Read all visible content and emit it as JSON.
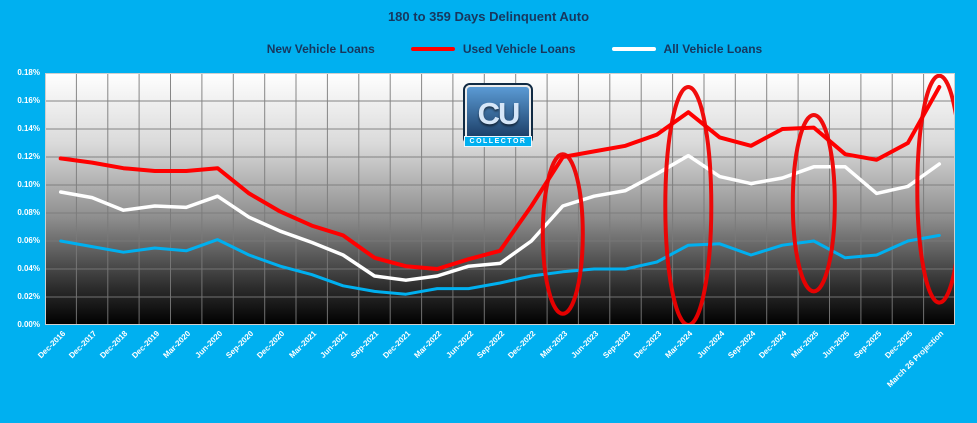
{
  "title": "180 to 359 Days Delinquent Auto",
  "logo": {
    "initials": "CU",
    "banner": "COLLECTOR"
  },
  "colors": {
    "background": "#00B0F0",
    "title_text": "#17375E",
    "grid": "#7A7A7A",
    "axis_text": "#FFFFFF",
    "annotation": "#F00000",
    "plot_border": "#CFCFCF"
  },
  "legend": [
    {
      "label": "New Vehicle Loans",
      "color": "#00B0F0"
    },
    {
      "label": "Used Vehicle Loans",
      "color": "#FF0000"
    },
    {
      "label": "All Vehicle Loans",
      "color": "#FFFFFF"
    }
  ],
  "chart_data": {
    "type": "line",
    "title": "180 to 359 Days Delinquent Auto",
    "xlabel": "",
    "ylabel": "",
    "ylim": [
      0,
      0.18
    ],
    "grid": true,
    "legend_position": "top",
    "y_ticks": [
      "0.00%",
      "0.02%",
      "0.04%",
      "0.06%",
      "0.08%",
      "0.10%",
      "0.12%",
      "0.14%",
      "0.16%",
      "0.18%"
    ],
    "categories": [
      "Dec-2016",
      "Dec-2017",
      "Dec-2018",
      "Dec-2019",
      "Mar-2020",
      "Jun-2020",
      "Sep-2020",
      "Dec-2020",
      "Mar-2021",
      "Jun-2021",
      "Sep-2021",
      "Dec-2021",
      "Mar-2022",
      "Jun-2022",
      "Sep-2022",
      "Dec-2022",
      "Mar-2023",
      "Jun-2023",
      "Sep-2023",
      "Dec-2023",
      "Mar-2024",
      "Jun-2024",
      "Sep-2024",
      "Dec-2024",
      "Mar-2025",
      "Jun-2025",
      "Sep-2025",
      "Dec-2025",
      "March 26 Projection"
    ],
    "series": [
      {
        "id": "new",
        "name": "New Vehicle Loans",
        "color": "#00B0F0",
        "values": [
          0.06,
          0.056,
          0.052,
          0.055,
          0.053,
          0.061,
          0.05,
          0.042,
          0.036,
          0.028,
          0.024,
          0.022,
          0.026,
          0.026,
          0.03,
          0.035,
          0.038,
          0.04,
          0.04,
          0.045,
          0.057,
          0.058,
          0.05,
          0.057,
          0.06,
          0.048,
          0.05,
          0.06,
          0.064
        ]
      },
      {
        "id": "all",
        "name": "All Vehicle Loans",
        "color": "#FFFFFF",
        "values": [
          0.095,
          0.091,
          0.082,
          0.085,
          0.084,
          0.092,
          0.077,
          0.067,
          0.059,
          0.05,
          0.035,
          0.032,
          0.035,
          0.042,
          0.044,
          0.06,
          0.085,
          0.092,
          0.096,
          0.108,
          0.121,
          0.106,
          0.101,
          0.105,
          0.113,
          0.113,
          0.094,
          0.099,
          0.115
        ]
      },
      {
        "id": "used",
        "name": "Used Vehicle Loans",
        "color": "#FF0000",
        "values": [
          0.119,
          0.116,
          0.112,
          0.11,
          0.11,
          0.112,
          0.094,
          0.081,
          0.071,
          0.064,
          0.048,
          0.042,
          0.04,
          0.047,
          0.053,
          0.085,
          0.12,
          0.124,
          0.128,
          0.136,
          0.152,
          0.134,
          0.128,
          0.14,
          0.141,
          0.122,
          0.118,
          0.13,
          0.17
        ]
      }
    ],
    "annotations": [
      {
        "type": "ellipse",
        "category": "Mar-2023",
        "index": 16,
        "y_center": 0.065,
        "y_radius": 0.057,
        "x_radius_px": 20
      },
      {
        "type": "ellipse",
        "category": "Mar-2024",
        "index": 20,
        "y_center": 0.085,
        "y_radius": 0.085,
        "x_radius_px": 23
      },
      {
        "type": "ellipse",
        "category": "Mar-2025",
        "index": 24,
        "y_center": 0.087,
        "y_radius": 0.063,
        "x_radius_px": 21
      },
      {
        "type": "ellipse",
        "category": "March 26 Projection",
        "index": 28,
        "y_center": 0.097,
        "y_radius": 0.081,
        "x_radius_px": 22
      }
    ]
  }
}
